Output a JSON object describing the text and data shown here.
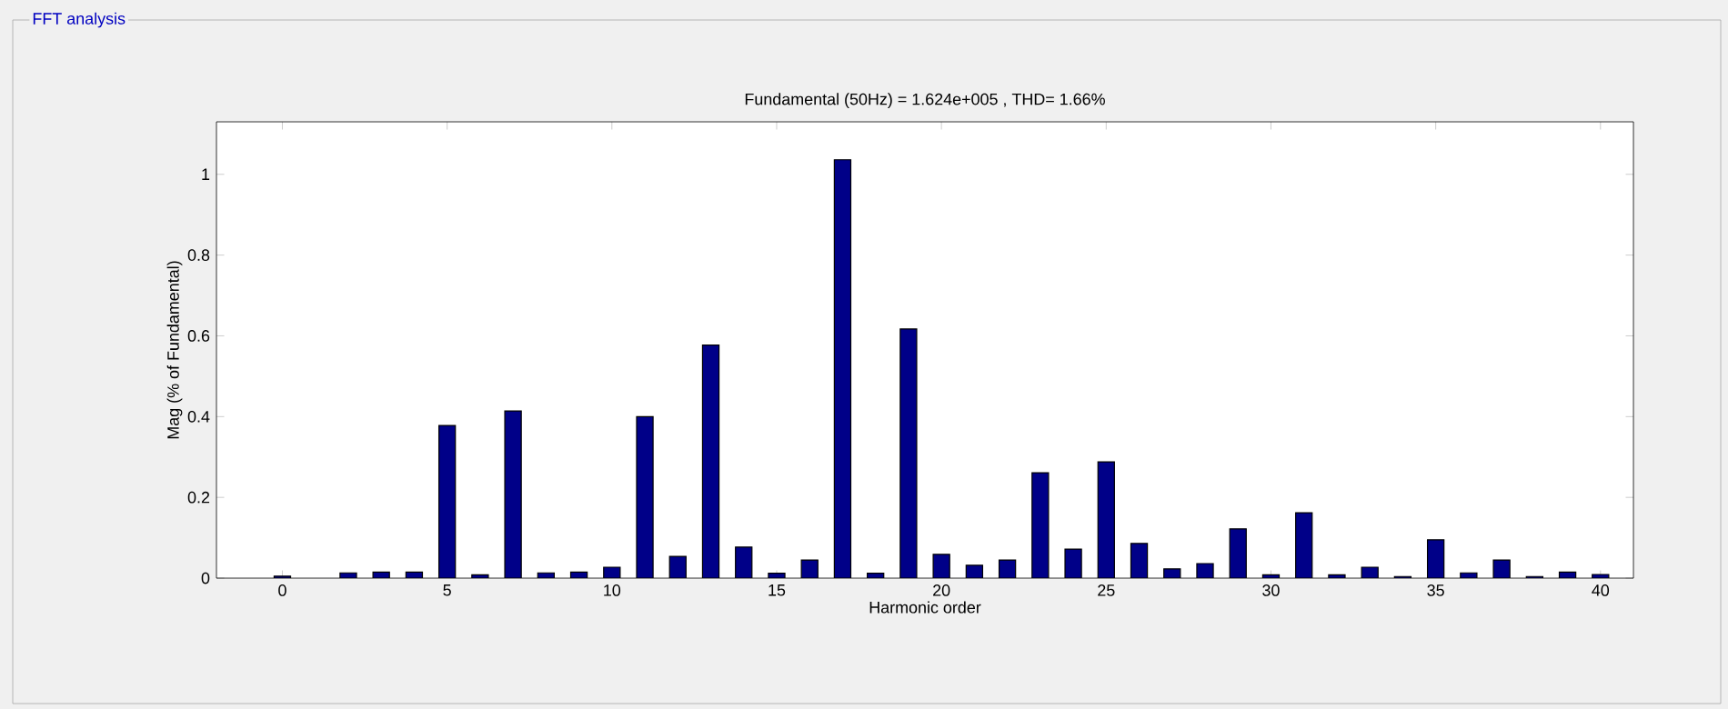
{
  "chart_data": {
    "type": "bar",
    "title": "FFT analysis",
    "subtitle": "Fundamental (50Hz) = 1.624e+005 , THD= 1.66%",
    "xlabel": "Harmonic order",
    "ylabel": "Mag (% of Fundamental)",
    "x": [
      0,
      1,
      2,
      3,
      4,
      5,
      6,
      7,
      8,
      9,
      10,
      11,
      12,
      13,
      14,
      15,
      16,
      17,
      18,
      19,
      20,
      21,
      22,
      23,
      24,
      25,
      26,
      27,
      28,
      29,
      30,
      31,
      32,
      33,
      34,
      35,
      36,
      37,
      38,
      39,
      40
    ],
    "values": [
      0.005,
      null,
      0.013,
      0.015,
      0.015,
      0.378,
      0.008,
      0.414,
      0.013,
      0.015,
      0.027,
      0.4,
      0.054,
      0.577,
      0.077,
      0.012,
      0.045,
      1.036,
      0.012,
      0.617,
      0.059,
      0.032,
      0.045,
      0.261,
      0.072,
      0.288,
      0.086,
      0.023,
      0.036,
      0.122,
      0.008,
      0.162,
      0.008,
      0.027,
      0.004,
      0.095,
      0.013,
      0.045,
      0.004,
      0.015,
      0.009
    ],
    "color": "#000088",
    "xlim": [
      -2,
      41
    ],
    "xticks": [
      0,
      5,
      10,
      15,
      20,
      25,
      30,
      35,
      40
    ],
    "ylim": [
      0,
      1.13
    ],
    "yticks": [
      0,
      0.2,
      0.4,
      0.6,
      0.8,
      1
    ],
    "grid": false
  }
}
